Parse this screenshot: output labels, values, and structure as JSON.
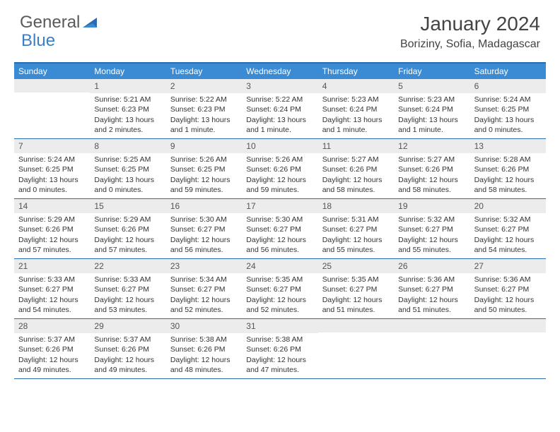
{
  "logo": {
    "text1": "General",
    "text2": "Blue"
  },
  "title": "January 2024",
  "location": "Boriziny, Sofia, Madagascar",
  "colors": {
    "header_bar": "#3b8bd4",
    "divider": "#2a6cb0",
    "daynum_bg": "#ececec",
    "logo_gray": "#5a5a5a",
    "logo_blue": "#3b7fc4"
  },
  "dow": [
    "Sunday",
    "Monday",
    "Tuesday",
    "Wednesday",
    "Thursday",
    "Friday",
    "Saturday"
  ],
  "weeks": [
    [
      {
        "n": "",
        "sr": "",
        "ss": "",
        "dl": ""
      },
      {
        "n": "1",
        "sr": "Sunrise: 5:21 AM",
        "ss": "Sunset: 6:23 PM",
        "dl": "Daylight: 13 hours and 2 minutes."
      },
      {
        "n": "2",
        "sr": "Sunrise: 5:22 AM",
        "ss": "Sunset: 6:23 PM",
        "dl": "Daylight: 13 hours and 1 minute."
      },
      {
        "n": "3",
        "sr": "Sunrise: 5:22 AM",
        "ss": "Sunset: 6:24 PM",
        "dl": "Daylight: 13 hours and 1 minute."
      },
      {
        "n": "4",
        "sr": "Sunrise: 5:23 AM",
        "ss": "Sunset: 6:24 PM",
        "dl": "Daylight: 13 hours and 1 minute."
      },
      {
        "n": "5",
        "sr": "Sunrise: 5:23 AM",
        "ss": "Sunset: 6:24 PM",
        "dl": "Daylight: 13 hours and 1 minute."
      },
      {
        "n": "6",
        "sr": "Sunrise: 5:24 AM",
        "ss": "Sunset: 6:25 PM",
        "dl": "Daylight: 13 hours and 0 minutes."
      }
    ],
    [
      {
        "n": "7",
        "sr": "Sunrise: 5:24 AM",
        "ss": "Sunset: 6:25 PM",
        "dl": "Daylight: 13 hours and 0 minutes."
      },
      {
        "n": "8",
        "sr": "Sunrise: 5:25 AM",
        "ss": "Sunset: 6:25 PM",
        "dl": "Daylight: 13 hours and 0 minutes."
      },
      {
        "n": "9",
        "sr": "Sunrise: 5:26 AM",
        "ss": "Sunset: 6:25 PM",
        "dl": "Daylight: 12 hours and 59 minutes."
      },
      {
        "n": "10",
        "sr": "Sunrise: 5:26 AM",
        "ss": "Sunset: 6:26 PM",
        "dl": "Daylight: 12 hours and 59 minutes."
      },
      {
        "n": "11",
        "sr": "Sunrise: 5:27 AM",
        "ss": "Sunset: 6:26 PM",
        "dl": "Daylight: 12 hours and 58 minutes."
      },
      {
        "n": "12",
        "sr": "Sunrise: 5:27 AM",
        "ss": "Sunset: 6:26 PM",
        "dl": "Daylight: 12 hours and 58 minutes."
      },
      {
        "n": "13",
        "sr": "Sunrise: 5:28 AM",
        "ss": "Sunset: 6:26 PM",
        "dl": "Daylight: 12 hours and 58 minutes."
      }
    ],
    [
      {
        "n": "14",
        "sr": "Sunrise: 5:29 AM",
        "ss": "Sunset: 6:26 PM",
        "dl": "Daylight: 12 hours and 57 minutes."
      },
      {
        "n": "15",
        "sr": "Sunrise: 5:29 AM",
        "ss": "Sunset: 6:26 PM",
        "dl": "Daylight: 12 hours and 57 minutes."
      },
      {
        "n": "16",
        "sr": "Sunrise: 5:30 AM",
        "ss": "Sunset: 6:27 PM",
        "dl": "Daylight: 12 hours and 56 minutes."
      },
      {
        "n": "17",
        "sr": "Sunrise: 5:30 AM",
        "ss": "Sunset: 6:27 PM",
        "dl": "Daylight: 12 hours and 56 minutes."
      },
      {
        "n": "18",
        "sr": "Sunrise: 5:31 AM",
        "ss": "Sunset: 6:27 PM",
        "dl": "Daylight: 12 hours and 55 minutes."
      },
      {
        "n": "19",
        "sr": "Sunrise: 5:32 AM",
        "ss": "Sunset: 6:27 PM",
        "dl": "Daylight: 12 hours and 55 minutes."
      },
      {
        "n": "20",
        "sr": "Sunrise: 5:32 AM",
        "ss": "Sunset: 6:27 PM",
        "dl": "Daylight: 12 hours and 54 minutes."
      }
    ],
    [
      {
        "n": "21",
        "sr": "Sunrise: 5:33 AM",
        "ss": "Sunset: 6:27 PM",
        "dl": "Daylight: 12 hours and 54 minutes."
      },
      {
        "n": "22",
        "sr": "Sunrise: 5:33 AM",
        "ss": "Sunset: 6:27 PM",
        "dl": "Daylight: 12 hours and 53 minutes."
      },
      {
        "n": "23",
        "sr": "Sunrise: 5:34 AM",
        "ss": "Sunset: 6:27 PM",
        "dl": "Daylight: 12 hours and 52 minutes."
      },
      {
        "n": "24",
        "sr": "Sunrise: 5:35 AM",
        "ss": "Sunset: 6:27 PM",
        "dl": "Daylight: 12 hours and 52 minutes."
      },
      {
        "n": "25",
        "sr": "Sunrise: 5:35 AM",
        "ss": "Sunset: 6:27 PM",
        "dl": "Daylight: 12 hours and 51 minutes."
      },
      {
        "n": "26",
        "sr": "Sunrise: 5:36 AM",
        "ss": "Sunset: 6:27 PM",
        "dl": "Daylight: 12 hours and 51 minutes."
      },
      {
        "n": "27",
        "sr": "Sunrise: 5:36 AM",
        "ss": "Sunset: 6:27 PM",
        "dl": "Daylight: 12 hours and 50 minutes."
      }
    ],
    [
      {
        "n": "28",
        "sr": "Sunrise: 5:37 AM",
        "ss": "Sunset: 6:26 PM",
        "dl": "Daylight: 12 hours and 49 minutes."
      },
      {
        "n": "29",
        "sr": "Sunrise: 5:37 AM",
        "ss": "Sunset: 6:26 PM",
        "dl": "Daylight: 12 hours and 49 minutes."
      },
      {
        "n": "30",
        "sr": "Sunrise: 5:38 AM",
        "ss": "Sunset: 6:26 PM",
        "dl": "Daylight: 12 hours and 48 minutes."
      },
      {
        "n": "31",
        "sr": "Sunrise: 5:38 AM",
        "ss": "Sunset: 6:26 PM",
        "dl": "Daylight: 12 hours and 47 minutes."
      },
      {
        "n": "",
        "sr": "",
        "ss": "",
        "dl": ""
      },
      {
        "n": "",
        "sr": "",
        "ss": "",
        "dl": ""
      },
      {
        "n": "",
        "sr": "",
        "ss": "",
        "dl": ""
      }
    ]
  ]
}
